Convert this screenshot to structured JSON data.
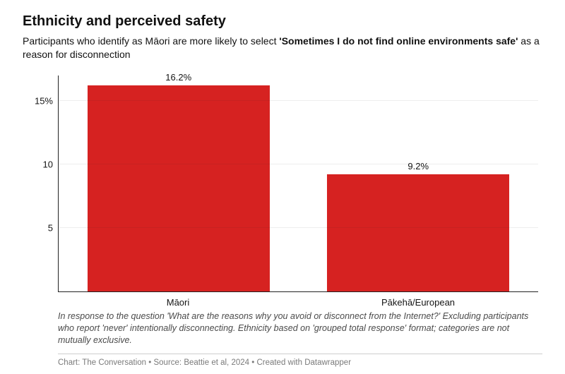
{
  "title": "Ethnicity and perceived safety",
  "subtitle_plain": "Participants who identify as Māori are more likely to select ",
  "subtitle_bold": "'Sometimes I do not find online environments safe'",
  "subtitle_tail": " as a reason for disconnection",
  "chart": {
    "type": "bar",
    "categories": [
      "Māori",
      "Pākehā/European"
    ],
    "values": [
      16.2,
      9.2
    ],
    "value_labels": [
      "16.2%",
      "9.2%"
    ],
    "bar_color": "#d62221",
    "axis_color": "#222222",
    "ylim_max": 17,
    "yticks": [
      {
        "v": 5,
        "label": "5"
      },
      {
        "v": 10,
        "label": "10"
      },
      {
        "v": 15,
        "label": "15%"
      }
    ],
    "background_color": "#ffffff",
    "bar_width_pct": 76,
    "value_label_fontsize": 13,
    "category_label_fontsize": 13,
    "ytick_fontsize": 13
  },
  "note": "In response to the question 'What are the reasons why you avoid or disconnect from the Internet?' Excluding participants who report 'never' intentionally disconnecting. Ethnicity based on 'grouped total response' format; categories are not mutually exclusive.",
  "credits": "Chart: The Conversation • Source: Beattie et al, 2024 • Created with Datawrapper"
}
